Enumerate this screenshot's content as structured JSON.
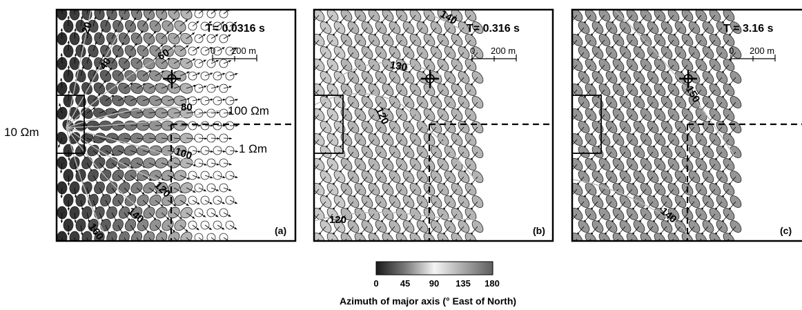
{
  "figure": {
    "panels": [
      {
        "id": "a",
        "period_label": "T= 0.0316 s",
        "panel_label": "(a)",
        "scale": {
          "zero": "0",
          "length": "200 m"
        },
        "contours": [
          "20",
          "40",
          "60",
          "80",
          "100",
          "120",
          "140",
          "160"
        ],
        "resistivity_labels": {
          "left": "10 Ωm",
          "upper_right": "100 Ωm",
          "lower_right": "1 Ωm"
        }
      },
      {
        "id": "b",
        "period_label": "T= 0.316 s",
        "panel_label": "(b)",
        "scale": {
          "zero": "0",
          "length": "200 m"
        },
        "contours": [
          "140",
          "130",
          "120",
          "120"
        ]
      },
      {
        "id": "c",
        "period_label": "T = 3.16 s",
        "panel_label": "(c)",
        "scale": {
          "zero": "0",
          "length": "200 m"
        },
        "contours": [
          "150",
          "140"
        ]
      }
    ],
    "colorbar": {
      "ticks": [
        "0",
        "45",
        "90",
        "135",
        "180"
      ],
      "title": "Azimuth of major axis  (° East of North)",
      "colors": [
        "#1a1a1a",
        "#7a7a7a",
        "#f4f4f4",
        "#a8a8a8",
        "#5e5e5e"
      ]
    }
  }
}
